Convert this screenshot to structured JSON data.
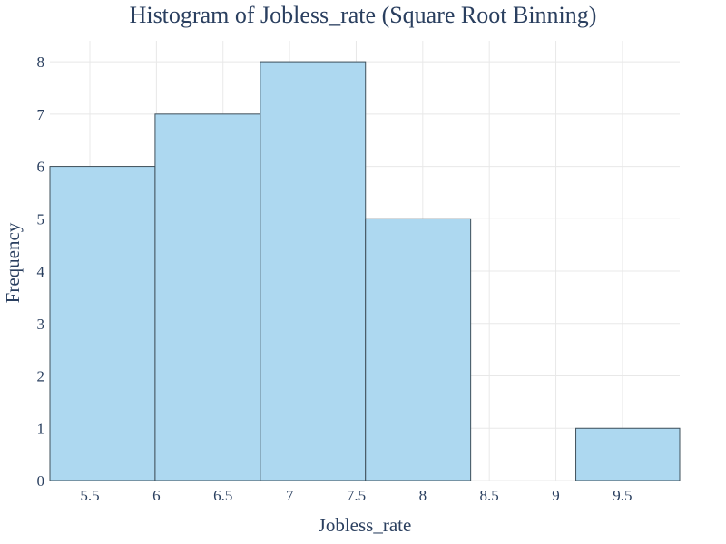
{
  "chart_data": {
    "type": "bar",
    "title": "Histogram of Jobless_rate (Square Root Binning)",
    "xlabel": "Jobless_rate",
    "ylabel": "Frequency",
    "xlim": [
      5.2,
      9.93
    ],
    "ylim": [
      0,
      8.4
    ],
    "bins": [
      {
        "start": 5.2,
        "end": 5.99,
        "count": 6
      },
      {
        "start": 5.99,
        "end": 6.78,
        "count": 7
      },
      {
        "start": 6.78,
        "end": 7.57,
        "count": 8
      },
      {
        "start": 7.57,
        "end": 8.36,
        "count": 5
      },
      {
        "start": 8.36,
        "end": 9.15,
        "count": 0
      },
      {
        "start": 9.15,
        "end": 9.93,
        "count": 1
      }
    ],
    "x_ticks": [
      "5.5",
      "6",
      "6.5",
      "7",
      "7.5",
      "8",
      "8.5",
      "9",
      "9.5"
    ],
    "y_ticks": [
      "0",
      "1",
      "2",
      "3",
      "4",
      "5",
      "6",
      "7",
      "8"
    ],
    "grid": true,
    "bar_color": "#add8f0",
    "bar_edge_color": "#3e4f5a"
  }
}
